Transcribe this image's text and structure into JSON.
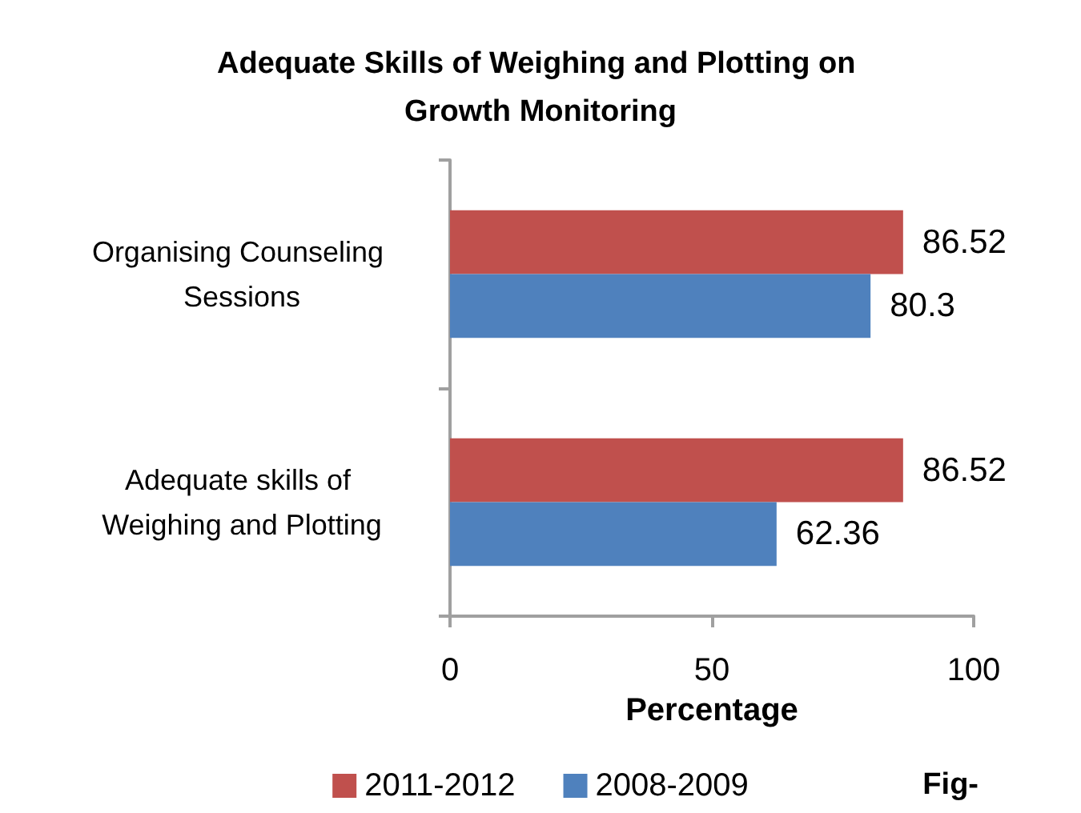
{
  "chart_data": {
    "type": "bar",
    "orientation": "horizontal",
    "title": "Adequate Skills of Weighing and Plotting on Growth Monitoring",
    "xlabel": "Percentage",
    "categories": [
      "Organising Counseling Sessions",
      "Adequate skills of Weighing and Plotting"
    ],
    "series": [
      {
        "name": "2011-2012",
        "color": "#c0504d",
        "values": [
          86.52,
          86.52
        ]
      },
      {
        "name": "2008-2009",
        "color": "#4f81bd",
        "values": [
          80.3,
          62.36
        ]
      }
    ],
    "xlim": [
      0,
      100
    ],
    "xticks": [
      0,
      50,
      100
    ],
    "grid": false,
    "legend": "bottom",
    "data_labels": true,
    "annotations": [
      "Fig-"
    ]
  }
}
